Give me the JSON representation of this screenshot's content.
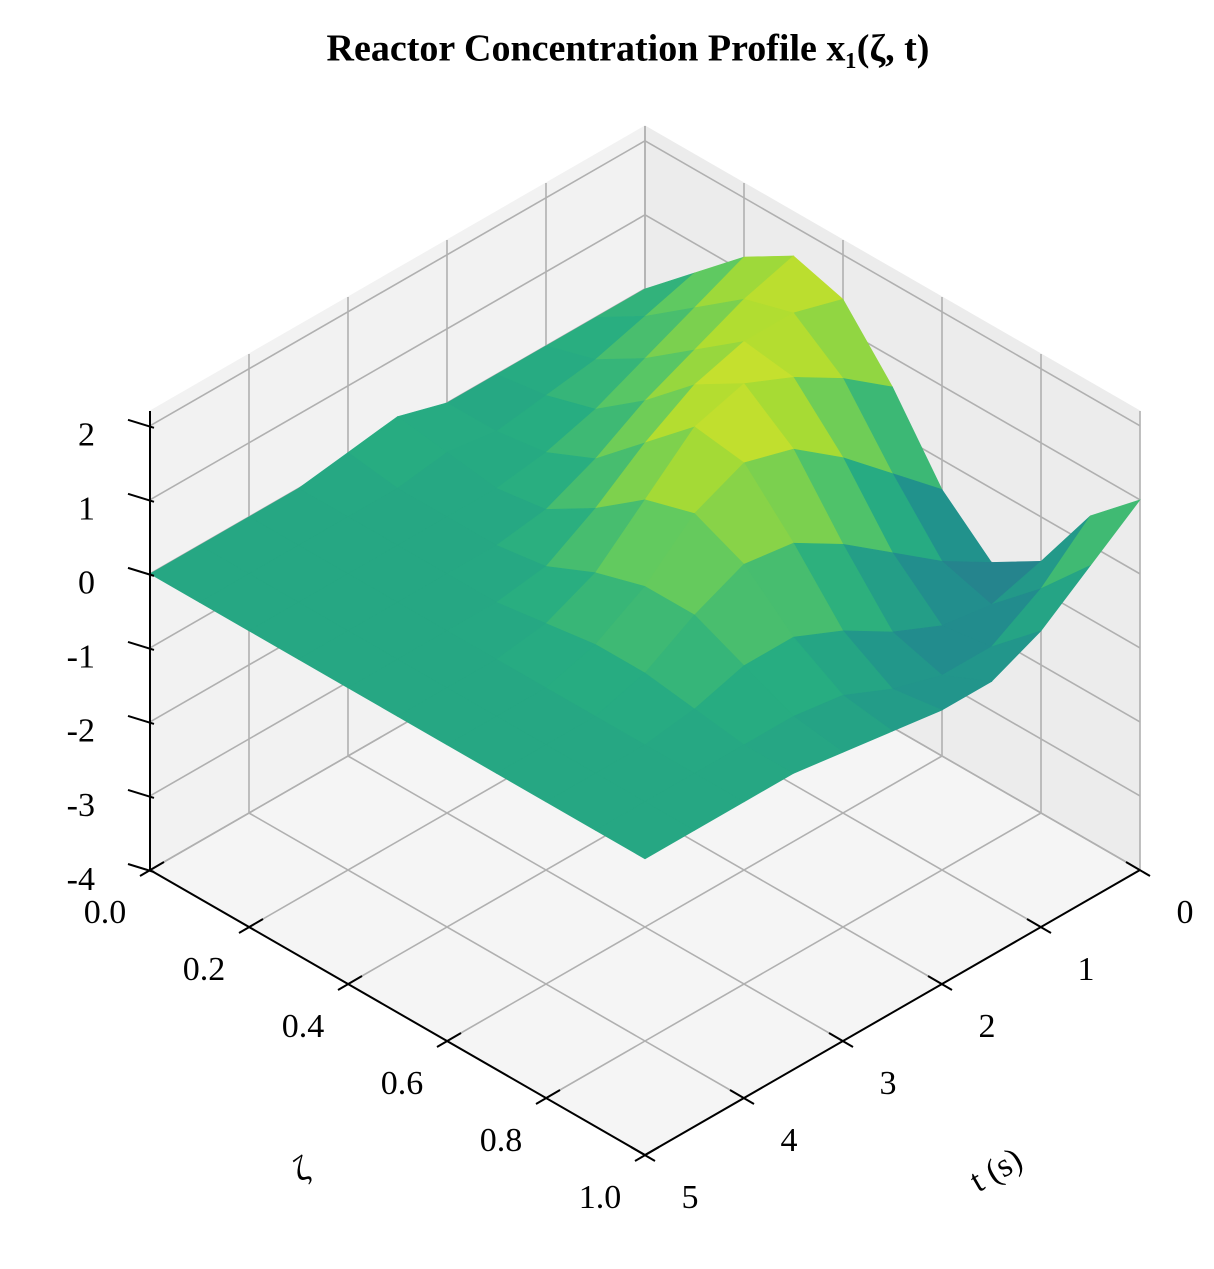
{
  "chart_data": {
    "type": "surface3d",
    "title": "Reactor Concentration Profile x₁(ζ, t)",
    "xlabel": "ζ",
    "ylabel": "t (s)",
    "x": [
      0,
      0.1,
      0.2,
      0.3,
      0.4,
      0.5,
      0.6,
      0.7,
      0.8,
      0.9,
      1
    ],
    "y": [
      0,
      0.5,
      1,
      1.5,
      2,
      2.5,
      3,
      3.5,
      4,
      4.5,
      5
    ],
    "z": [
      [
        0,
        0.6,
        1.2,
        1.6,
        1.4,
        0.6,
        -0.4,
        -1.0,
        -0.6,
        0.4,
        1.0
      ],
      [
        0,
        0.4,
        0.9,
        1.4,
        1.6,
        1.1,
        0.2,
        -0.6,
        -0.8,
        -0.2,
        0.5
      ],
      [
        0,
        0.2,
        0.6,
        1.1,
        1.6,
        1.5,
        0.8,
        -0.1,
        -0.7,
        -0.6,
        0
      ],
      [
        0,
        0.1,
        0.3,
        0.8,
        1.4,
        1.8,
        1.3,
        0.4,
        -0.4,
        -0.6,
        -0.3
      ],
      [
        0,
        0,
        0.1,
        0.4,
        1.0,
        1.6,
        1.5,
        0.8,
        0,
        -0.4,
        -0.3
      ],
      [
        0.2,
        0.1,
        0,
        0.1,
        0.5,
        1.0,
        1.2,
        0.9,
        0.3,
        -0.1,
        -0.2
      ],
      [
        0.1,
        0,
        0,
        0,
        0.1,
        0.4,
        0.6,
        0.6,
        0.3,
        0,
        -0.1
      ],
      [
        0,
        0,
        0,
        0,
        0,
        0.1,
        0.2,
        0.2,
        0.1,
        0,
        0
      ],
      [
        0,
        0,
        0,
        0,
        0,
        0,
        0,
        0,
        0,
        0,
        0
      ],
      [
        0,
        0,
        0,
        0,
        0,
        0,
        0,
        0,
        0,
        0,
        0
      ],
      [
        0,
        0,
        0,
        0,
        0,
        0,
        0,
        0,
        0,
        0,
        0
      ]
    ],
    "colormap": "viridis",
    "xlim": [
      0,
      1
    ],
    "ylim": [
      0,
      5
    ],
    "zlim": [
      -4,
      2.2
    ],
    "xticks": [
      {
        "value": 0,
        "label": "0.0"
      },
      0.2,
      0.4,
      0.6,
      0.8,
      {
        "value": 1,
        "label": "1.0"
      }
    ],
    "yticks": [
      0,
      1,
      2,
      3,
      4,
      5
    ],
    "zticks": [
      -4,
      -3,
      -2,
      -1,
      0,
      1,
      2
    ],
    "grid": true
  }
}
